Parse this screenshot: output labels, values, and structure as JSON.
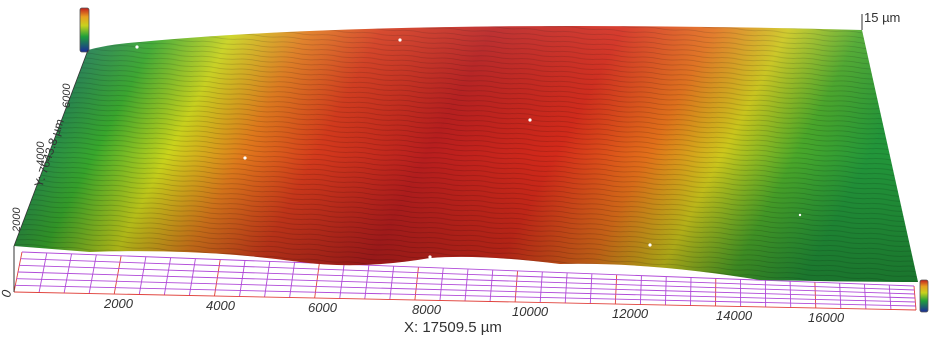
{
  "surface_view": {
    "x_axis": {
      "label": "X: 17509.5 µm",
      "ticks": [
        "0",
        "2000",
        "4000",
        "6000",
        "8000",
        "10000",
        "12000",
        "14000",
        "16000"
      ]
    },
    "y_axis": {
      "label": "Y: 7643.8 µm",
      "ticks": [
        "2000",
        "4000",
        "6000"
      ]
    },
    "z_axis": {
      "label": "15 µm"
    },
    "height_colormap": [
      "#1a2a9a",
      "#1fa03a",
      "#c8d21e",
      "#e8a020",
      "#d63a1e",
      "#c01e1e"
    ]
  }
}
